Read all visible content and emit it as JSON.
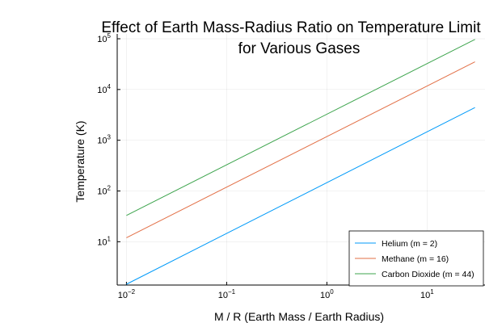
{
  "chart_data": {
    "type": "line",
    "title_lines": [
      "Effect of Earth Mass-Radius Ratio on Temperature Limit",
      "for Various Gases"
    ],
    "xlabel": "M / R (Earth Mass / Earth Radius)",
    "ylabel": "Temperature (K)",
    "x_scale": "log",
    "y_scale": "log",
    "xlim": [
      0.01,
      30
    ],
    "ylim": [
      1.4,
      100000
    ],
    "x_ticks": [
      {
        "value": 0.01,
        "base": "10",
        "exp": "−2"
      },
      {
        "value": 0.1,
        "base": "10",
        "exp": "−1"
      },
      {
        "value": 1,
        "base": "10",
        "exp": "0"
      },
      {
        "value": 10,
        "base": "10",
        "exp": "1"
      }
    ],
    "y_ticks": [
      {
        "value": 10,
        "base": "10",
        "exp": "1"
      },
      {
        "value": 100,
        "base": "10",
        "exp": "2"
      },
      {
        "value": 1000,
        "base": "10",
        "exp": "3"
      },
      {
        "value": 10000,
        "base": "10",
        "exp": "4"
      },
      {
        "value": 100000,
        "base": "10",
        "exp": "5"
      }
    ],
    "grid": true,
    "legend_position": "bottom-right",
    "series": [
      {
        "name": "Helium (m = 2)",
        "color": "#009af9",
        "x": [
          0.01,
          30
        ],
        "y": [
          1.45,
          4400
        ]
      },
      {
        "name": "Methane (m = 16)",
        "color": "#e26f46",
        "x": [
          0.01,
          30
        ],
        "y": [
          12,
          35000
        ]
      },
      {
        "name": "Carbon Dioxide (m = 44)",
        "color": "#3da44d",
        "x": [
          0.01,
          30
        ],
        "y": [
          33,
          97000
        ]
      }
    ]
  }
}
